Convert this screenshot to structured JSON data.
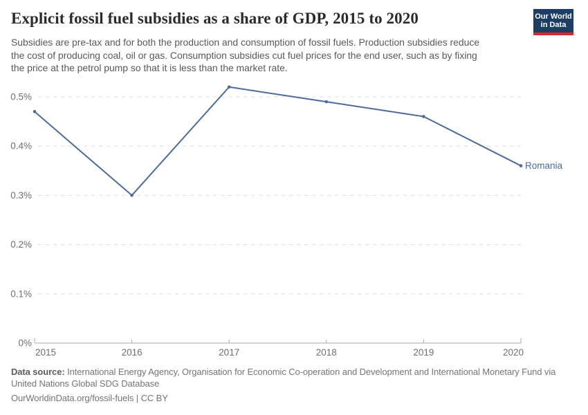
{
  "header": {
    "title": "Explicit fossil fuel subsidies as a share of GDP, 2015 to 2020",
    "subtitle_lines": [
      "Subsidies are pre-tax and for both the production and consumption of fossil fuels. Production subsidies reduce",
      "the cost of producing coal, oil or gas. Consumption subsidies cut fuel prices for the end user, such as by fixing",
      "the price at the petrol pump so that it is less than the market rate."
    ]
  },
  "logo": {
    "line1": "Our World",
    "line2": "in Data",
    "bg_color": "#1d3d63",
    "accent_color": "#e0262b",
    "text_color": "#ffffff"
  },
  "chart_data": {
    "type": "line",
    "title": "Explicit fossil fuel subsidies as a share of GDP, 2015 to 2020",
    "x": [
      2015,
      2016,
      2017,
      2018,
      2019,
      2020
    ],
    "x_tick_labels": [
      "2015",
      "2016",
      "2017",
      "2018",
      "2019",
      "2020"
    ],
    "series": [
      {
        "name": "Romania",
        "values": [
          0.47,
          0.3,
          0.52,
          0.49,
          0.46,
          0.36
        ],
        "color": "#4c6a9c"
      }
    ],
    "unit": "% of GDP",
    "xlabel": "",
    "ylabel": "",
    "ylim": [
      0,
      0.5
    ],
    "y_ticks": [
      0,
      0.1,
      0.2,
      0.3,
      0.4,
      0.5
    ],
    "y_tick_labels": [
      "0%",
      "0.1%",
      "0.2%",
      "0.3%",
      "0.4%",
      "0.5%"
    ],
    "grid": "horizontal-dashed",
    "legend_position": "end-of-line-label",
    "colors": {
      "gridline": "#dedede",
      "axis": "#a8a8a8",
      "tick_text": "#6e6e6e"
    }
  },
  "footer": {
    "source_label": "Data source:",
    "source_line1": "International Energy Agency, Organisation for Economic Co-operation and Development and International Monetary Fund via",
    "source_line2": "United Nations Global SDG Database",
    "license_line": "OurWorldinData.org/fossil-fuels | CC BY"
  }
}
